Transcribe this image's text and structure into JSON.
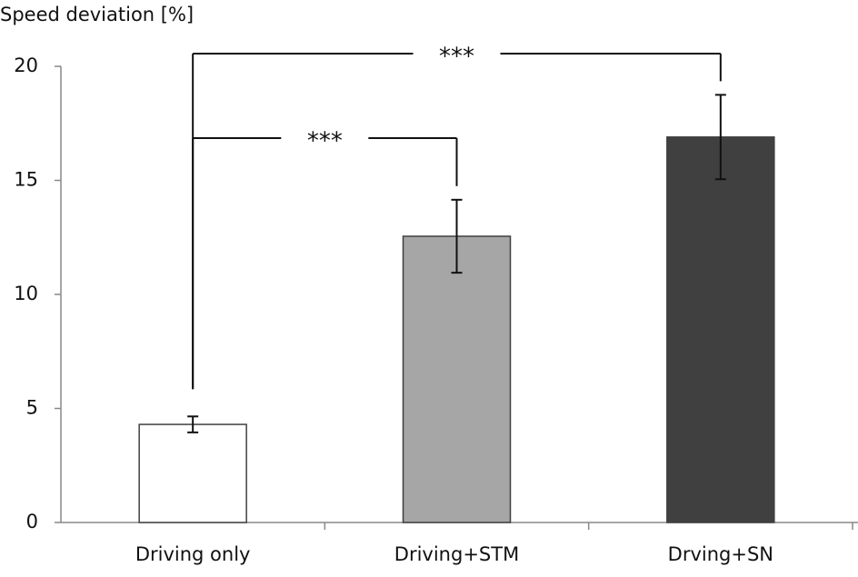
{
  "chart_data": {
    "type": "bar",
    "y_label": "Speed deviation [%]",
    "categories": [
      "Driving only",
      "Driving+STM",
      "Drving+SN"
    ],
    "values": [
      4.3,
      12.55,
      16.9
    ],
    "errors": [
      0.35,
      1.6,
      1.85
    ],
    "colors": [
      "#ffffff",
      "#a6a6a6",
      "#404040"
    ],
    "ylim": [
      0,
      20
    ],
    "yticks": [
      0,
      5,
      10,
      15,
      20
    ],
    "significance": [
      {
        "label": "***",
        "groups": [
          0,
          1
        ]
      },
      {
        "label": "***",
        "groups": [
          0,
          2
        ]
      }
    ]
  }
}
